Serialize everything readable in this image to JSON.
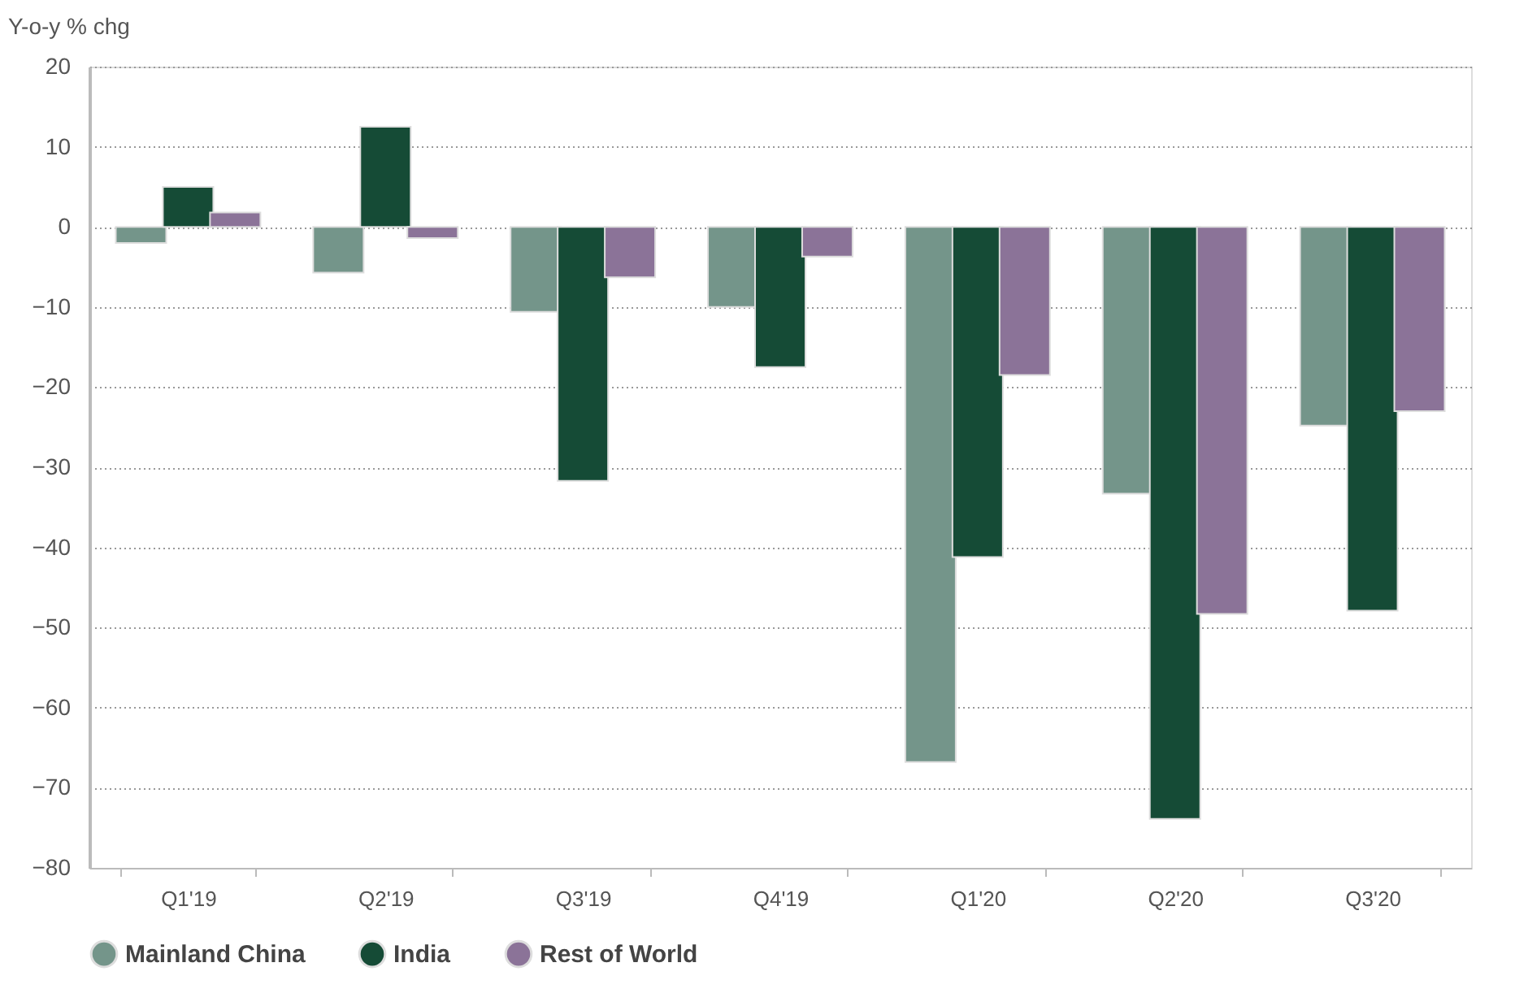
{
  "chart_data": {
    "type": "bar",
    "ylabel": "Y-o-y % chg",
    "categories": [
      "Q1'19",
      "Q2'19",
      "Q3'19",
      "Q4'19",
      "Q1'20",
      "Q2'20",
      "Q3'20"
    ],
    "series": [
      {
        "name": "Mainland China",
        "color": "#74958a",
        "values": [
          -2,
          -5.7,
          -10.6,
          -10,
          -66.8,
          -33.3,
          -24.8
        ]
      },
      {
        "name": "India",
        "color": "#154b36",
        "values": [
          5,
          12.5,
          -31.7,
          -17.5,
          -41.2,
          -73.9,
          -47.9
        ]
      },
      {
        "name": "Rest of World",
        "color": "#8b7398",
        "values": [
          1.8,
          -1.4,
          -6.3,
          -3.7,
          -18.5,
          -48.3,
          -23
        ]
      }
    ],
    "ylim": [
      -80,
      20
    ],
    "yticks": [
      -80,
      -70,
      -60,
      -50,
      -40,
      -30,
      -20,
      -10,
      0,
      10,
      20
    ],
    "grid": "y",
    "legend": "bottom left"
  }
}
